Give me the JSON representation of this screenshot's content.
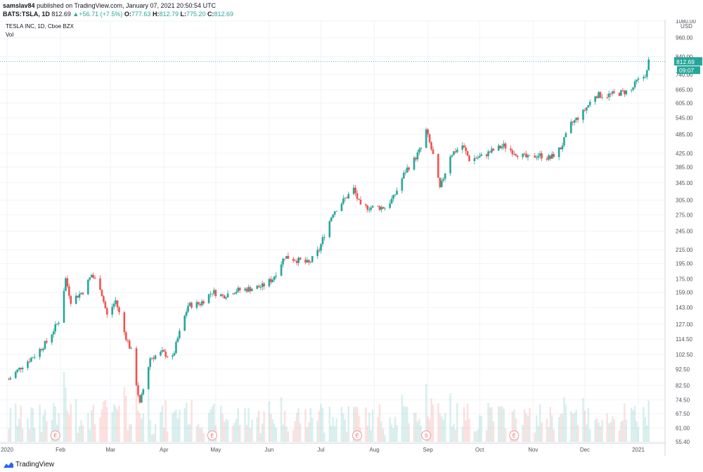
{
  "header": {
    "author": "samslav84",
    "published_text": "published on TradingView.com, January 07, 2021 20:50:54 UTC",
    "symbol": "BATS:TSLA, 1D",
    "last": "812.69",
    "change": "+56.71 (+7.5%)",
    "o_label": "O:",
    "o": "777.63",
    "h_label": "H:",
    "h": "812.79",
    "l_label": "L:",
    "l": "775.20",
    "c_label": "C:",
    "c": "812.69"
  },
  "legend": {
    "name": "TESLA INC, 1D, Cboe BZX",
    "vol": "Vol"
  },
  "footer": {
    "brand": "TradingView"
  },
  "colors": {
    "up": "#26a69a",
    "down": "#ef5350",
    "grid": "#f0f3fa",
    "last_price": "#26a69a"
  },
  "chart_data": {
    "type": "candlestick",
    "currency": "USD",
    "y_scale": "log",
    "ylim": [
      55.4,
      1080
    ],
    "y_ticks": [
      "1080.00",
      "960.00",
      "840.00",
      "740.00",
      "665.00",
      "605.00",
      "545.00",
      "485.00",
      "425.00",
      "385.00",
      "345.00",
      "305.00",
      "275.00",
      "245.00",
      "215.00",
      "195.00",
      "175.00",
      "159.00",
      "143.00",
      "127.00",
      "114.50",
      "102.50",
      "92.50",
      "82.50",
      "74.50",
      "67.50",
      "61.00",
      "55.40"
    ],
    "x_labels": [
      {
        "label": "2020",
        "date": "2020-01-01"
      },
      {
        "label": "Feb",
        "date": "2020-02-01"
      },
      {
        "label": "Mar",
        "date": "2020-03-01"
      },
      {
        "label": "Apr",
        "date": "2020-04-01"
      },
      {
        "label": "May",
        "date": "2020-05-01"
      },
      {
        "label": "Jun",
        "date": "2020-06-01"
      },
      {
        "label": "Jul",
        "date": "2020-07-01"
      },
      {
        "label": "Aug",
        "date": "2020-08-01"
      },
      {
        "label": "Sep",
        "date": "2020-09-01"
      },
      {
        "label": "Oct",
        "date": "2020-10-01"
      },
      {
        "label": "Nov",
        "date": "2020-11-01"
      },
      {
        "label": "Dec",
        "date": "2020-12-01"
      },
      {
        "label": "2021",
        "date": "2021-01-01"
      }
    ],
    "events": [
      {
        "label": "E",
        "date": "2020-01-29"
      },
      {
        "label": "E",
        "date": "2020-04-29"
      },
      {
        "label": "E",
        "date": "2020-07-22"
      },
      {
        "label": "S",
        "date": "2020-08-31"
      },
      {
        "label": "E",
        "date": "2020-10-21"
      }
    ],
    "last_price": "812.69",
    "countdown": "09:07",
    "price_points": [
      [
        "2020-01-02",
        86
      ],
      [
        "2020-01-10",
        95
      ],
      [
        "2020-01-17",
        102
      ],
      [
        "2020-01-24",
        112
      ],
      [
        "2020-01-31",
        130
      ],
      [
        "2020-02-04",
        175
      ],
      [
        "2020-02-07",
        150
      ],
      [
        "2020-02-14",
        160
      ],
      [
        "2020-02-19",
        180
      ],
      [
        "2020-02-24",
        165
      ],
      [
        "2020-02-28",
        135
      ],
      [
        "2020-03-04",
        150
      ],
      [
        "2020-03-09",
        120
      ],
      [
        "2020-03-13",
        105
      ],
      [
        "2020-03-18",
        72
      ],
      [
        "2020-03-24",
        100
      ],
      [
        "2020-03-31",
        104
      ],
      [
        "2020-04-06",
        100
      ],
      [
        "2020-04-09",
        115
      ],
      [
        "2020-04-15",
        145
      ],
      [
        "2020-04-22",
        147
      ],
      [
        "2020-04-29",
        160
      ],
      [
        "2020-05-05",
        155
      ],
      [
        "2020-05-12",
        161
      ],
      [
        "2020-05-20",
        163
      ],
      [
        "2020-05-28",
        166
      ],
      [
        "2020-06-03",
        175
      ],
      [
        "2020-06-10",
        205
      ],
      [
        "2020-06-17",
        200
      ],
      [
        "2020-06-24",
        195
      ],
      [
        "2020-06-30",
        215
      ],
      [
        "2020-07-03",
        240
      ],
      [
        "2020-07-08",
        280
      ],
      [
        "2020-07-13",
        300
      ],
      [
        "2020-07-20",
        330
      ],
      [
        "2020-07-24",
        290
      ],
      [
        "2020-07-31",
        290
      ],
      [
        "2020-08-07",
        290
      ],
      [
        "2020-08-12",
        310
      ],
      [
        "2020-08-19",
        375
      ],
      [
        "2020-08-24",
        405
      ],
      [
        "2020-08-28",
        440
      ],
      [
        "2020-08-31",
        498
      ],
      [
        "2020-09-04",
        418
      ],
      [
        "2020-09-08",
        330
      ],
      [
        "2020-09-14",
        420
      ],
      [
        "2020-09-21",
        449
      ],
      [
        "2020-09-25",
        407
      ],
      [
        "2020-10-02",
        415
      ],
      [
        "2020-10-09",
        434
      ],
      [
        "2020-10-15",
        448
      ],
      [
        "2020-10-22",
        425
      ],
      [
        "2020-10-29",
        410
      ],
      [
        "2020-11-04",
        420
      ],
      [
        "2020-11-11",
        410
      ],
      [
        "2020-11-17",
        441
      ],
      [
        "2020-11-23",
        521
      ],
      [
        "2020-11-30",
        567
      ],
      [
        "2020-12-07",
        641
      ],
      [
        "2020-12-14",
        640
      ],
      [
        "2020-12-21",
        650
      ],
      [
        "2020-12-28",
        663
      ],
      [
        "2020-12-31",
        705
      ],
      [
        "2021-01-04",
        729
      ],
      [
        "2021-01-06",
        755
      ],
      [
        "2021-01-07",
        812.69
      ]
    ],
    "volume_note": "green bars on up days, red bars on down days"
  }
}
